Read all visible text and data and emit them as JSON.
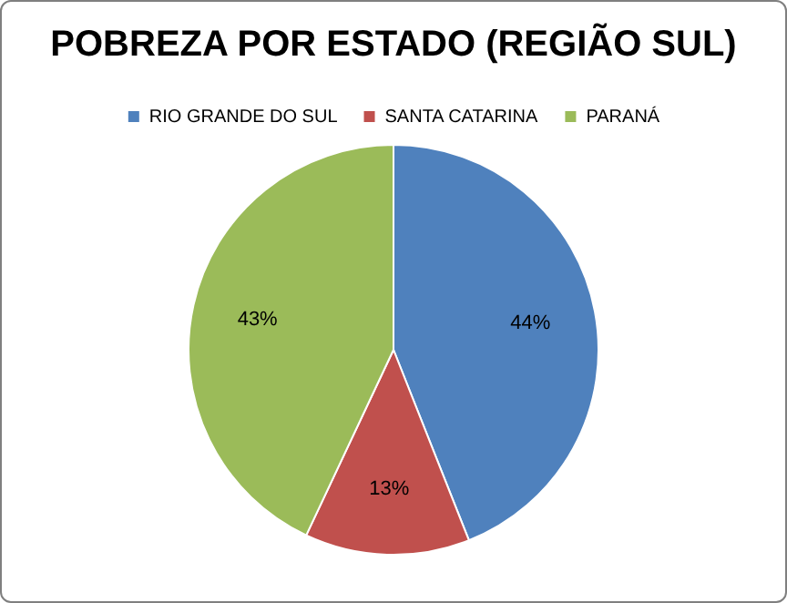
{
  "chart_data": {
    "type": "pie",
    "title": "POBREZA POR ESTADO (REGIÃO SUL)",
    "categories": [
      "RIO GRANDE DO SUL",
      "SANTA CATARINA",
      "PARANÁ"
    ],
    "values": [
      44,
      13,
      43
    ],
    "colors": [
      "#4f81bd",
      "#c0504d",
      "#9bbb59"
    ],
    "value_labels": [
      "44%",
      "13%",
      "43%"
    ],
    "legend": "top"
  }
}
